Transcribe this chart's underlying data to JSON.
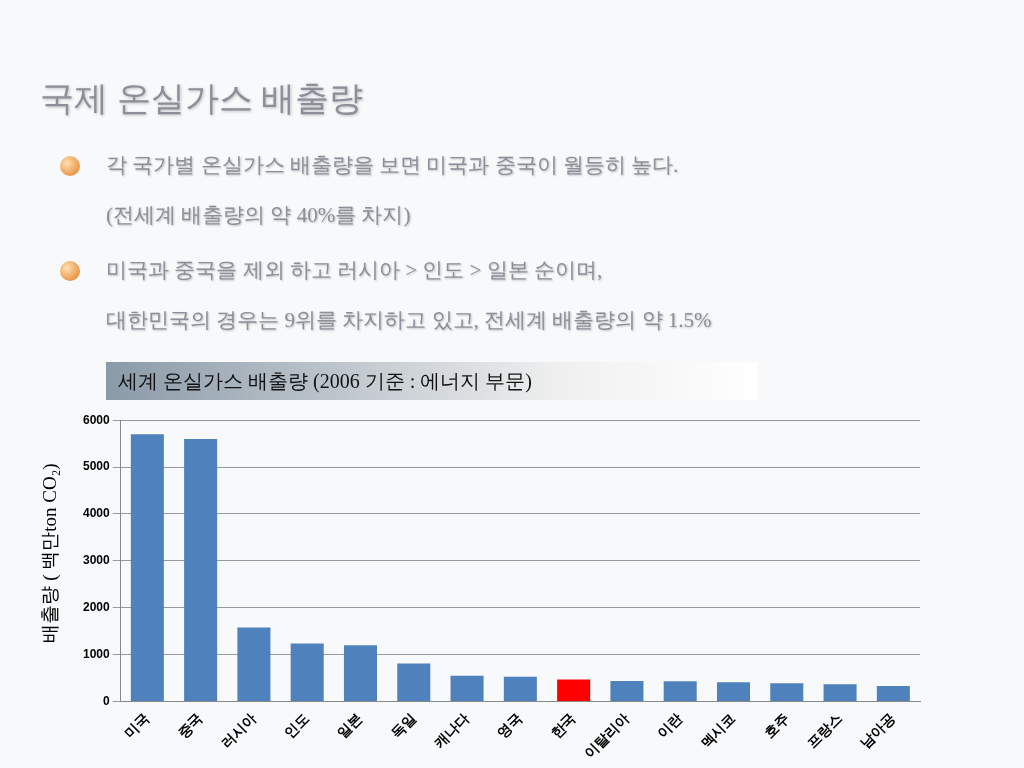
{
  "chart_data": {
    "type": "bar",
    "subtitle": "국제 온실가스 배출량",
    "annotations": [
      "각 국가별 온실가스 배출량을 보면 미국과 중국이 월등히 높다.\n(전세계 배출량의 약 40%를 차지)",
      "미국과 중국을 제외 하고 러시아 > 인도 > 일본 순이며,\n대한민국의 경우는 9위를 차지하고 있고, 전세계 배출량의 약 1.5%"
    ],
    "title": "세계 온실가스 배출량 (2006 기준 : 에너지 부문)",
    "ylabel": "배출량 ( 백만ton CO₂)",
    "categories": [
      "미국",
      "중국",
      "러시아",
      "인도",
      "일본",
      "독일",
      "캐나다",
      "영국",
      "한국",
      "이탈리아",
      "이란",
      "멕시코",
      "호주",
      "프랑스",
      "남아공"
    ],
    "values": [
      5700,
      5600,
      1580,
      1240,
      1200,
      810,
      550,
      530,
      470,
      440,
      430,
      410,
      390,
      370,
      330
    ],
    "colors": [
      "#4f81bd",
      "#4f81bd",
      "#4f81bd",
      "#4f81bd",
      "#4f81bd",
      "#4f81bd",
      "#4f81bd",
      "#4f81bd",
      "#ff0000",
      "#4f81bd",
      "#4f81bd",
      "#4f81bd",
      "#4f81bd",
      "#4f81bd",
      "#4f81bd"
    ],
    "ylim": [
      0,
      6000
    ],
    "yticks": [
      0,
      1000,
      2000,
      3000,
      4000,
      5000,
      6000
    ],
    "grid": "y",
    "legend": false
  }
}
